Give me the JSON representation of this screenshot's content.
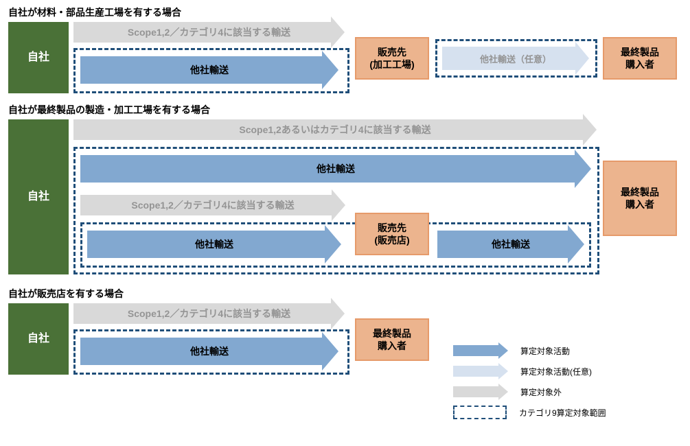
{
  "colors": {
    "green": "#4a7137",
    "orange_fill": "#ecb48e",
    "orange_border": "#e69a6a",
    "blue_arrow": "#82a8d0",
    "blue_light": "#d6e1ef",
    "grey_arrow": "#d9d9d9",
    "grey_text": "#949494",
    "dashed_border": "#1f4e79"
  },
  "section1": {
    "title": "自社が材料・部品生産工場を有する場合",
    "self": "自社",
    "scope_label": "Scope1,2／カテゴリ4に該当する輸送",
    "other_transport": "他社輸送",
    "sales_dest": "販売先\n(加工工場)",
    "optional_transport": "他社輸送（任意）",
    "final_buyer": "最終製品\n購入者"
  },
  "section2": {
    "title": "自社が最終製品の製造・加工工場を有する場合",
    "self": "自社",
    "scope_label_top": "Scope1,2あるいはカテゴリ4に該当する輸送",
    "other_transport_top": "他社輸送",
    "scope_label_bottom": "Scope1,2／カテゴリ4に該当する輸送",
    "other_transport_bottom_left": "他社輸送",
    "sales_dest": "販売先\n(販売店)",
    "other_transport_bottom_right": "他社輸送",
    "final_buyer": "最終製品\n購入者"
  },
  "section3": {
    "title": "自社が販売店を有する場合",
    "self": "自社",
    "scope_label": "Scope1,2／カテゴリ4に該当する輸送",
    "other_transport": "他社輸送",
    "final_buyer": "最終製品\n購入者"
  },
  "legend": {
    "item1": "算定対象活動",
    "item2": "算定対象活動(任意)",
    "item3": "算定対象外",
    "item4": "カテゴリ9算定対象範囲"
  }
}
